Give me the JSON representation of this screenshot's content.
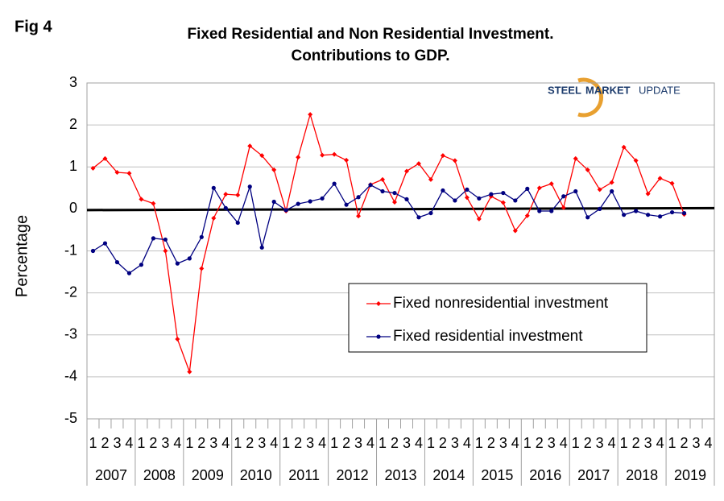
{
  "chart_data": {
    "type": "line",
    "figure_label": "Fig 4",
    "title": "Fixed Residential and Non Residential Investment.",
    "subtitle": "Contributions to GDP.",
    "ylabel": "Percentage",
    "logo": [
      "STEEL",
      "MARKET",
      "UPDATE"
    ],
    "categories": [
      "1",
      "2",
      "3",
      "4",
      "1",
      "2",
      "3",
      "4",
      "1",
      "2",
      "3",
      "4",
      "1",
      "2",
      "3",
      "4",
      "1",
      "2",
      "3",
      "4",
      "1",
      "2",
      "3",
      "4",
      "1",
      "2",
      "3",
      "4",
      "1",
      "2",
      "3",
      "4",
      "1",
      "2",
      "3",
      "4",
      "1",
      "2",
      "3",
      "4",
      "1",
      "2",
      "3",
      "4",
      "1",
      "2",
      "3",
      "4",
      "1",
      "2",
      "3",
      "4"
    ],
    "years": [
      "2007",
      "2008",
      "2009",
      "2010",
      "2011",
      "2012",
      "2013",
      "2014",
      "2015",
      "2016",
      "2017",
      "2018",
      "2019"
    ],
    "ylim": [
      -5,
      3
    ],
    "yticks": [
      -5,
      -4,
      -3,
      -2,
      -1,
      0,
      1,
      2,
      3
    ],
    "grid": true,
    "series": [
      {
        "name": "Fixed nonresidential investment",
        "color": "#ff0000",
        "marker": "diamond",
        "values": [
          0.97,
          1.2,
          0.87,
          0.85,
          0.23,
          0.13,
          -1.0,
          -3.1,
          -3.88,
          -1.42,
          -0.22,
          0.35,
          0.33,
          1.5,
          1.27,
          0.93,
          -0.05,
          1.23,
          2.25,
          1.28,
          1.3,
          1.16,
          -0.17,
          0.58,
          0.7,
          0.16,
          0.9,
          1.08,
          0.7,
          1.27,
          1.15,
          0.27,
          -0.24,
          0.3,
          0.15,
          -0.52,
          -0.16,
          0.5,
          0.6,
          0.03,
          1.2,
          0.93,
          0.46,
          0.63,
          1.47,
          1.15,
          0.36,
          0.73,
          0.61,
          -0.13,
          null,
          null
        ]
      },
      {
        "name": "Fixed residential investment",
        "color": "#000080",
        "marker": "circle",
        "values": [
          -1.0,
          -0.82,
          -1.27,
          -1.53,
          -1.33,
          -0.7,
          -0.73,
          -1.3,
          -1.18,
          -0.67,
          0.5,
          0.02,
          -0.33,
          0.53,
          -0.92,
          0.17,
          -0.03,
          0.12,
          0.18,
          0.25,
          0.6,
          0.1,
          0.28,
          0.57,
          0.42,
          0.38,
          0.23,
          -0.2,
          -0.1,
          0.44,
          0.2,
          0.46,
          0.25,
          0.35,
          0.38,
          0.2,
          0.48,
          -0.05,
          -0.05,
          0.3,
          0.42,
          -0.2,
          0.0,
          0.42,
          -0.14,
          -0.05,
          -0.14,
          -0.18,
          -0.08,
          -0.1,
          null,
          null
        ]
      }
    ]
  }
}
